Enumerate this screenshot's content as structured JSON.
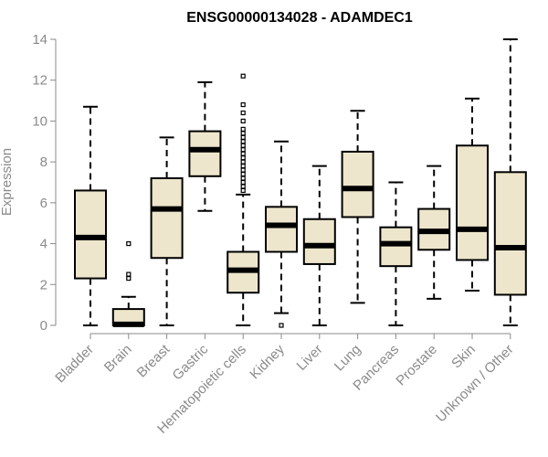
{
  "chart_data": {
    "type": "boxplot",
    "title": "ENSG00000134028 - ADAMDEC1",
    "ylabel": "Expression",
    "xlabel": "",
    "ylim": [
      0,
      14
    ],
    "yticks": [
      0,
      2,
      4,
      6,
      8,
      10,
      12,
      14
    ],
    "grid": false,
    "colors": {
      "box_fill": "#ede6cc",
      "stroke": "#000000",
      "axis": "#8a8a8a"
    },
    "categories": [
      "Bladder",
      "Brain",
      "Breast",
      "Gastric",
      "Hematopoietic cells",
      "Kidney",
      "Liver",
      "Lung",
      "Pancreas",
      "Prostate",
      "Skin",
      "Unknown / Other"
    ],
    "boxes": [
      {
        "category": "Bladder",
        "min": 0,
        "q1": 2.3,
        "median": 4.3,
        "q3": 6.6,
        "max": 10.7,
        "outliers": []
      },
      {
        "category": "Brain",
        "min": 0,
        "q1": 0,
        "median": 0.05,
        "q3": 0.8,
        "max": 1.4,
        "outliers": [
          2.3,
          2.5,
          4.0
        ]
      },
      {
        "category": "Breast",
        "min": 0,
        "q1": 3.3,
        "median": 5.7,
        "q3": 7.2,
        "max": 9.2,
        "outliers": []
      },
      {
        "category": "Gastric",
        "min": 5.6,
        "q1": 7.3,
        "median": 8.6,
        "q3": 9.5,
        "max": 11.9,
        "outliers": []
      },
      {
        "category": "Hematopoietic cells",
        "min": 0,
        "q1": 1.6,
        "median": 2.7,
        "q3": 3.6,
        "max": 6.4,
        "outliers": [
          6.6,
          6.8,
          7.0,
          7.2,
          7.4,
          7.6,
          7.8,
          8.0,
          8.2,
          8.4,
          8.6,
          8.8,
          9.0,
          9.2,
          9.4,
          9.6,
          10.0,
          10.4,
          10.8,
          12.2
        ]
      },
      {
        "category": "Kidney",
        "min": 0.6,
        "q1": 3.6,
        "median": 4.9,
        "q3": 5.8,
        "max": 9.0,
        "outliers": [
          0
        ]
      },
      {
        "category": "Liver",
        "min": 0,
        "q1": 3.0,
        "median": 3.9,
        "q3": 5.2,
        "max": 7.8,
        "outliers": []
      },
      {
        "category": "Lung",
        "min": 1.1,
        "q1": 5.3,
        "median": 6.7,
        "q3": 8.5,
        "max": 10.5,
        "outliers": []
      },
      {
        "category": "Pancreas",
        "min": 0,
        "q1": 2.9,
        "median": 4.0,
        "q3": 4.8,
        "max": 7.0,
        "outliers": []
      },
      {
        "category": "Prostate",
        "min": 1.3,
        "q1": 3.7,
        "median": 4.6,
        "q3": 5.7,
        "max": 7.8,
        "outliers": []
      },
      {
        "category": "Skin",
        "min": 1.7,
        "q1": 3.2,
        "median": 4.7,
        "q3": 8.8,
        "max": 11.1,
        "outliers": []
      },
      {
        "category": "Unknown / Other",
        "min": 0,
        "q1": 1.5,
        "median": 3.8,
        "q3": 7.5,
        "max": 14.0,
        "outliers": []
      }
    ]
  }
}
